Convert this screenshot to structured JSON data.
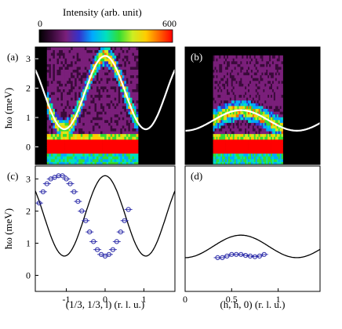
{
  "colorbar": {
    "title": "Intensity (arb. unit)",
    "min_label": "0",
    "max_label": "600",
    "range": [
      0,
      600
    ],
    "colormap": [
      "#000000",
      "#3a0a3a",
      "#7a1f7a",
      "#3333cc",
      "#00aaff",
      "#00e0c0",
      "#33dd33",
      "#ccee22",
      "#ffcc00",
      "#ff6600",
      "#ff0000"
    ]
  },
  "chart_data": [
    {
      "panel": "(a)",
      "type": "heatmap",
      "xlim": [
        -1.8,
        1.8
      ],
      "ylim": [
        -0.6,
        3.4
      ],
      "ylabel": "ħω (meV)",
      "yticks": [
        0,
        1,
        2,
        3
      ],
      "dispersion": {
        "name": "",
        "color": "#ffffff",
        "form": "A + B*cos(2*pi*l/2.1)",
        "A": 1.85,
        "B": 1.25,
        "period": 2.1
      },
      "elastic_band": {
        "energy": 0.0,
        "width": 0.45,
        "color": "#ff0000"
      }
    },
    {
      "panel": "(b)",
      "type": "heatmap",
      "xlim": [
        0,
        1.45
      ],
      "ylim": [
        -0.6,
        3.4
      ],
      "dispersion": {
        "name": "",
        "color": "#ffffff",
        "form": "A + B*cos(2*pi*(h-0.6)/1.2)",
        "A": 0.9,
        "B": 0.35,
        "period": 1.2
      },
      "elastic_band": {
        "energy": 0.0,
        "width": 0.45,
        "color": "#ff0000"
      }
    },
    {
      "panel": "(c)",
      "type": "scatter",
      "xlim": [
        -1.8,
        1.8
      ],
      "ylim": [
        -0.5,
        3.4
      ],
      "xlabel": "(1/3, 1/3, l) (r. l. u.)",
      "ylabel": "ħω (meV)",
      "xticks": [
        -1,
        0,
        1
      ],
      "xtick_labels": [
        "-1",
        "0",
        "1"
      ],
      "yticks": [
        0,
        1,
        2,
        3
      ],
      "marker_color": "#2a2aa8",
      "curve_color": "#000000",
      "x": [
        -1.7,
        -1.6,
        -1.5,
        -1.4,
        -1.3,
        -1.2,
        -1.1,
        -1.0,
        -0.9,
        -0.8,
        -0.7,
        -0.6,
        -0.5,
        -0.4,
        -0.3,
        -0.2,
        -0.1,
        0.0,
        0.1,
        0.2,
        0.3,
        0.4,
        0.5,
        0.6
      ],
      "y": [
        2.25,
        2.6,
        2.85,
        3.0,
        3.05,
        3.1,
        3.1,
        3.0,
        2.85,
        2.6,
        2.3,
        2.0,
        1.7,
        1.35,
        1.05,
        0.8,
        0.65,
        0.6,
        0.65,
        0.8,
        1.05,
        1.35,
        1.7,
        2.05
      ]
    },
    {
      "panel": "(d)",
      "type": "scatter",
      "xlim": [
        0,
        1.45
      ],
      "ylim": [
        -0.5,
        3.4
      ],
      "xlabel": "(h, h, 0) (r. l. u.)",
      "xticks": [
        0,
        0.5,
        1
      ],
      "xtick_labels": [
        "0",
        "0.5",
        "1"
      ],
      "marker_color": "#2a2aa8",
      "curve_color": "#000000",
      "x": [
        0.35,
        0.4,
        0.45,
        0.5,
        0.55,
        0.6,
        0.65,
        0.7,
        0.75,
        0.8,
        0.85
      ],
      "y": [
        0.55,
        0.55,
        0.6,
        0.65,
        0.65,
        0.65,
        0.62,
        0.6,
        0.58,
        0.6,
        0.65
      ]
    }
  ]
}
